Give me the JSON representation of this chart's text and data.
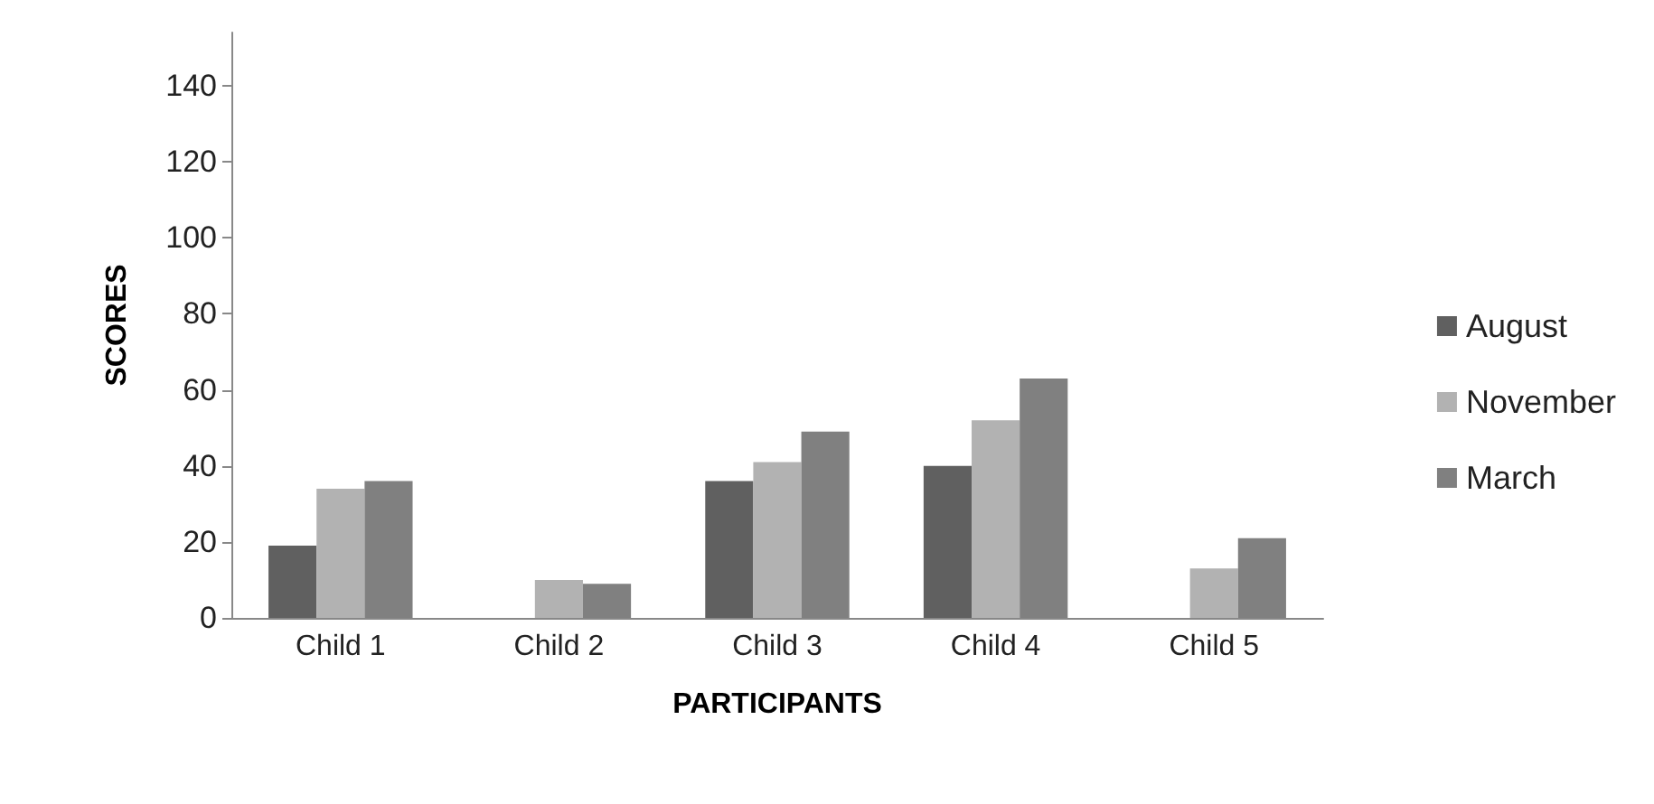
{
  "chart_data": {
    "type": "bar",
    "xlabel": "PARTICIPANTS",
    "ylabel": "SCORES",
    "categories": [
      "Child 1",
      "Child 2",
      "Child 3",
      "Child 4",
      "Child 5"
    ],
    "series": [
      {
        "name": "August",
        "color": "#606060",
        "values": [
          19,
          0,
          36,
          40,
          0
        ]
      },
      {
        "name": "November",
        "color": "#b2b2b2",
        "values": [
          34,
          10,
          41,
          52,
          13
        ]
      },
      {
        "name": "March",
        "color": "#808080",
        "values": [
          36,
          9,
          49,
          63,
          21
        ]
      }
    ],
    "ylim": [
      0,
      154
    ],
    "yticks": [
      0,
      20,
      40,
      60,
      80,
      100,
      120,
      140
    ],
    "grid": false,
    "legend": "right"
  }
}
